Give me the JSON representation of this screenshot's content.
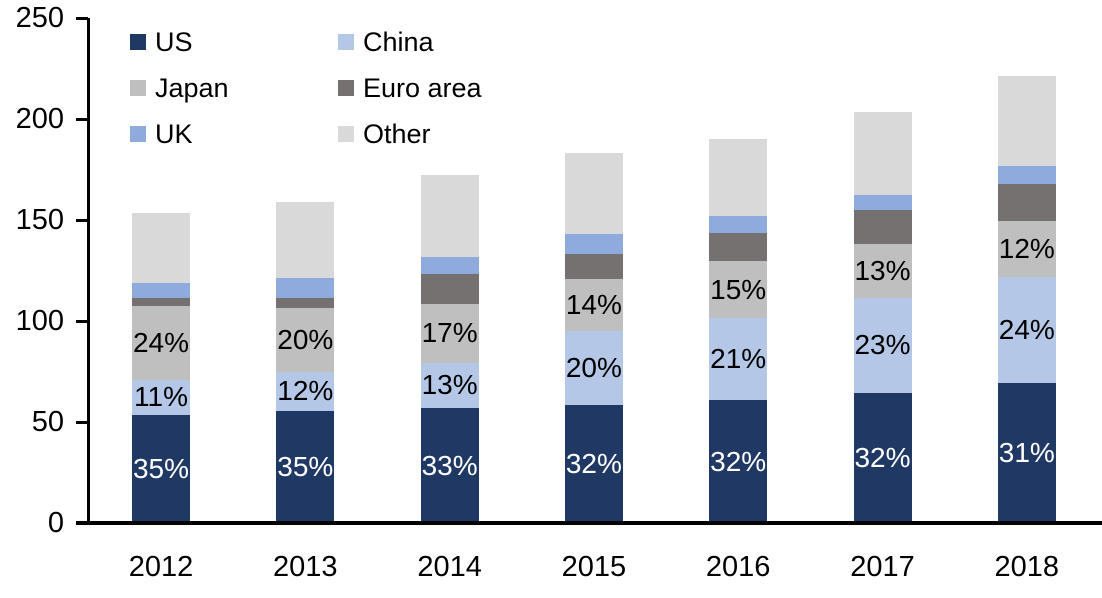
{
  "chart_data": {
    "type": "bar",
    "stacked": true,
    "title": "",
    "xlabel": "",
    "ylabel": "",
    "categories": [
      "2012",
      "2013",
      "2014",
      "2015",
      "2016",
      "2017",
      "2018"
    ],
    "series": [
      {
        "name": "US",
        "color": "#1f3864",
        "values": [
          53.7,
          55.7,
          56.9,
          58.6,
          60.8,
          64.4,
          69.3
        ],
        "segment_labels": [
          "35%",
          "35%",
          "33%",
          "32%",
          "32%",
          "32%",
          "31%"
        ],
        "label_color": "#ffffff"
      },
      {
        "name": "China",
        "color": "#b4c7e7",
        "values": [
          16.9,
          19.1,
          22.4,
          36.6,
          40.6,
          47.0,
          52.5
        ],
        "segment_labels": [
          "11%",
          "12%",
          "13%",
          "20%",
          "21%",
          "23%",
          "24%"
        ],
        "label_color": "#000000"
      },
      {
        "name": "Japan",
        "color": "#bfbfbf",
        "values": [
          36.8,
          31.8,
          29.3,
          25.6,
          28.2,
          26.7,
          27.7
        ],
        "segment_labels": [
          "24%",
          "20%",
          "17%",
          "14%",
          "15%",
          "13%",
          "12%"
        ],
        "label_color": "#000000"
      },
      {
        "name": "Euro area",
        "color": "#767171",
        "values": [
          4.0,
          5.0,
          14.9,
          12.4,
          13.9,
          16.8,
          18.3
        ],
        "segment_labels": null,
        "label_color": null
      },
      {
        "name": "UK",
        "color": "#8faadc",
        "values": [
          7.4,
          9.9,
          8.4,
          9.9,
          8.4,
          7.4,
          8.9
        ],
        "segment_labels": null,
        "label_color": null
      },
      {
        "name": "Other",
        "color": "#d9d9d9",
        "values": [
          34.7,
          37.5,
          40.4,
          40.1,
          38.2,
          41.2,
          44.8
        ],
        "segment_labels": null,
        "label_color": null
      }
    ],
    "totals_estimated": [
      153.5,
      159.0,
      172.3,
      183.2,
      190.1,
      203.5,
      221.5
    ],
    "ylim": [
      0,
      250
    ],
    "yticks": [
      0,
      50,
      100,
      150,
      200,
      250
    ],
    "grid": false,
    "legend": {
      "position": "top-left",
      "rows": [
        [
          "US",
          "China"
        ],
        [
          "Japan",
          "Euro area"
        ],
        [
          "UK",
          "Other"
        ]
      ]
    },
    "axis_color": "#000000"
  }
}
